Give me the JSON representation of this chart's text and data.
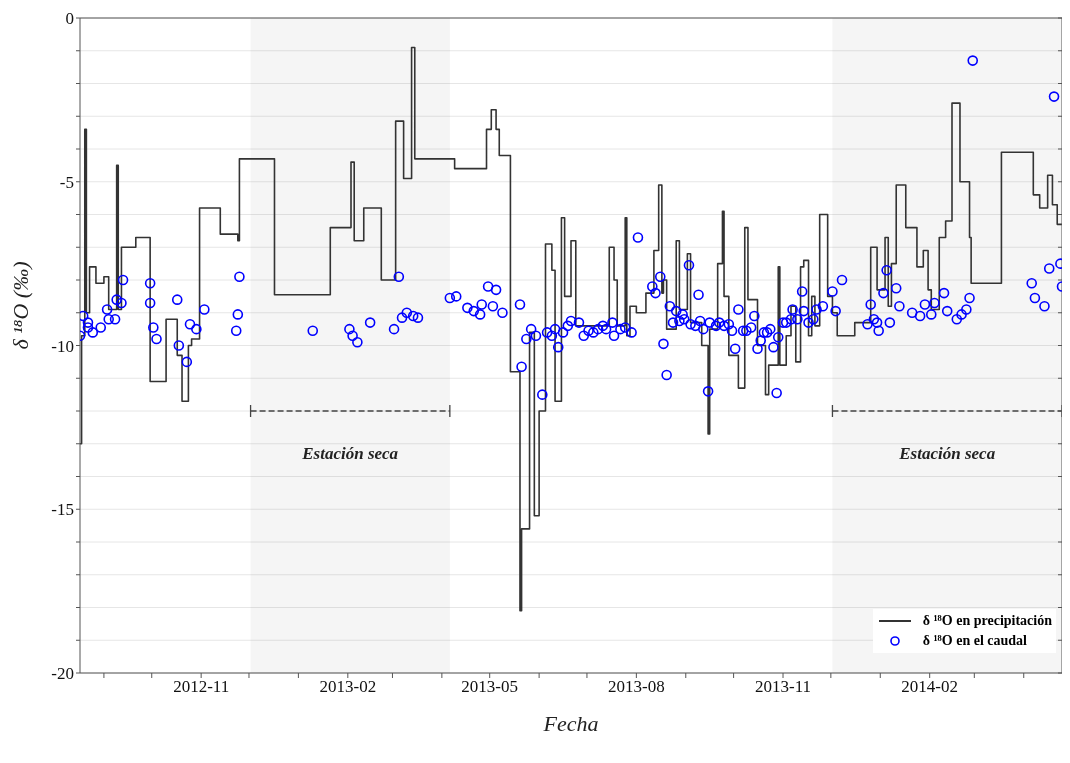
{
  "chart_data": {
    "type": "step",
    "xlabel": "Fecha",
    "ylabel": "δ ¹⁸O (‰)",
    "xlim": [
      "2012-08-17",
      "2014-04-25"
    ],
    "xticks": [
      {
        "value": "2012-09",
        "label": null
      },
      {
        "value": "2012-10",
        "label": null
      },
      "2012-11",
      {
        "value": "2012-12",
        "label": null
      },
      {
        "value": "2013-01",
        "label": null
      },
      "2013-02",
      {
        "value": "2013-03",
        "label": null
      },
      {
        "value": "2013-04",
        "label": null
      },
      "2013-05",
      {
        "value": "2013-06",
        "label": null
      },
      {
        "value": "2013-07",
        "label": null
      },
      "2013-08",
      {
        "value": "2013-09",
        "label": null
      },
      {
        "value": "2013-10",
        "label": null
      },
      "2013-11",
      {
        "value": "2013-12",
        "label": null
      },
      {
        "value": "2014-01",
        "label": null
      },
      "2014-02",
      {
        "value": "2014-03",
        "label": null
      },
      {
        "value": "2014-04",
        "label": null
      }
    ],
    "ylim": [
      -20,
      0
    ],
    "yticks": [
      -20,
      {
        "value": -19,
        "label": null
      },
      {
        "value": -18,
        "label": null
      },
      {
        "value": -17,
        "label": null
      },
      {
        "value": -16,
        "label": null
      },
      -15,
      {
        "value": -14,
        "label": null
      },
      {
        "value": -13,
        "label": null
      },
      {
        "value": -12,
        "label": null
      },
      {
        "value": -11,
        "label": null
      },
      -10,
      {
        "value": -9,
        "label": null
      },
      {
        "value": -8,
        "label": null
      },
      {
        "value": -7,
        "label": null
      },
      {
        "value": -6,
        "label": null
      },
      -5,
      {
        "value": -4,
        "label": null
      },
      {
        "value": -3,
        "label": null
      },
      {
        "value": -2,
        "label": null
      },
      {
        "value": -1,
        "label": null
      },
      0
    ],
    "grid": "y",
    "legend": "bottom right",
    "series": [
      {
        "name": "δ ¹⁸O en precipitación",
        "color": "#333333",
        "marker": "none",
        "x": [
          "2012-08-17",
          "2012-08-18",
          "2012-08-20",
          "2012-08-21",
          "2012-08-23",
          "2012-08-27",
          "2012-09-01",
          "2012-09-04",
          "2012-09-09",
          "2012-09-10",
          "2012-09-12",
          "2012-09-21",
          "2012-09-30",
          "2012-10-10",
          "2012-10-17",
          "2012-10-20",
          "2012-10-24",
          "2012-10-26",
          "2012-10-31",
          "2012-11-13",
          "2012-11-24",
          "2012-11-25",
          "2012-12-17",
          "2013-01-21",
          "2013-02-03",
          "2013-02-05",
          "2013-02-11",
          "2013-02-22",
          "2013-03-03",
          "2013-03-08",
          "2013-03-13",
          "2013-03-15",
          "2013-04-09",
          "2013-04-29",
          "2013-05-02",
          "2013-05-05",
          "2013-05-07",
          "2013-05-14",
          "2013-05-20",
          "2013-05-21",
          "2013-05-26",
          "2013-05-29",
          "2013-06-01",
          "2013-06-05",
          "2013-06-09",
          "2013-06-11",
          "2013-06-15",
          "2013-06-17",
          "2013-06-21",
          "2013-06-24",
          "2013-07-15",
          "2013-07-18",
          "2013-07-20",
          "2013-07-25",
          "2013-07-26",
          "2013-07-28",
          "2013-08-01",
          "2013-08-07",
          "2013-08-12",
          "2013-08-15",
          "2013-08-17",
          "2013-08-18",
          "2013-08-20",
          "2013-08-26",
          "2013-08-28",
          "2013-09-02",
          "2013-09-04",
          "2013-09-11",
          "2013-09-15",
          "2013-09-16",
          "2013-09-21",
          "2013-09-24",
          "2013-09-25",
          "2013-09-28",
          "2013-10-04",
          "2013-10-08",
          "2013-10-10",
          "2013-10-16",
          "2013-10-21",
          "2013-10-23",
          "2013-10-29",
          "2013-10-30",
          "2013-11-03",
          "2013-11-06",
          "2013-11-09",
          "2013-11-12",
          "2013-11-14",
          "2013-11-17",
          "2013-11-19",
          "2013-11-21",
          "2013-11-24",
          "2013-11-29",
          "2013-12-02",
          "2013-12-05",
          "2013-12-16",
          "2013-12-26",
          "2013-12-30",
          "2014-01-04",
          "2014-01-06",
          "2014-01-08",
          "2014-01-11",
          "2014-01-17",
          "2014-01-24",
          "2014-01-28",
          "2014-01-31",
          "2014-02-02",
          "2014-02-07",
          "2014-02-11",
          "2014-02-15",
          "2014-02-20",
          "2014-02-26",
          "2014-02-27",
          "2014-03-18",
          "2014-04-07",
          "2014-04-11",
          "2014-04-16",
          "2014-04-19",
          "2014-04-22",
          "2014-04-25"
        ],
        "values": [
          -13.0,
          -9.7,
          -3.4,
          -9.0,
          -7.6,
          -8.1,
          -7.9,
          -8.9,
          -4.5,
          -8.9,
          -7.0,
          -6.7,
          -11.1,
          -9.2,
          -10.3,
          -11.7,
          -10.0,
          -9.8,
          -5.8,
          -6.6,
          -6.8,
          -4.3,
          -8.45,
          -6.4,
          -4.4,
          -6.8,
          -5.8,
          -8.0,
          -3.15,
          -4.9,
          -0.9,
          -4.3,
          -4.6,
          -3.4,
          -2.8,
          -3.4,
          -4.2,
          -10.8,
          -18.1,
          -15.6,
          -9.6,
          -15.2,
          -12.0,
          -6.9,
          -7.7,
          -11.7,
          -6.1,
          -8.5,
          -6.8,
          -9.4,
          -7.0,
          -8.0,
          -9.4,
          -6.1,
          -9.7,
          -8.8,
          -9.0,
          -8.4,
          -7.1,
          -5.1,
          -8.4,
          -8.0,
          -9.5,
          -6.8,
          -8.9,
          -7.2,
          -9.3,
          -10.0,
          -12.7,
          -9.5,
          -7.5,
          -5.9,
          -8.5,
          -10.3,
          -11.3,
          -6.4,
          -8.6,
          -10.0,
          -11.5,
          -10.6,
          -7.6,
          -10.6,
          -9.7,
          -8.8,
          -10.5,
          -7.6,
          -7.4,
          -9.7,
          -8.5,
          -9.4,
          -6.0,
          -8.5,
          -9.0,
          -9.7,
          -9.3,
          -7.0,
          -8.3,
          -6.7,
          -8.8,
          -7.5,
          -5.1,
          -6.4,
          -7.6,
          -7.1,
          -8.3,
          -8.9,
          -6.7,
          -6.2,
          -2.6,
          -5.0,
          -6.7,
          -8.1,
          -4.1,
          -5.4,
          -5.8,
          -4.8,
          -5.7,
          -6.3,
          -6.3
        ]
      },
      {
        "name": "δ ¹⁸O en el caudal",
        "type": "scatter",
        "color": "#0000ff",
        "marker": "circle",
        "x": [
          "2012-08-17",
          "2012-08-19",
          "2012-08-22",
          "2012-08-22",
          "2012-08-25",
          "2012-08-30",
          "2012-09-03",
          "2012-09-04",
          "2012-09-08",
          "2012-09-09",
          "2012-09-12",
          "2012-09-13",
          "2012-09-30",
          "2012-09-30",
          "2012-10-02",
          "2012-10-04",
          "2012-10-17",
          "2012-10-18",
          "2012-10-23",
          "2012-10-25",
          "2012-10-29",
          "2012-11-03",
          "2012-11-23",
          "2012-11-24",
          "2012-11-25",
          "2013-01-10",
          "2013-02-02",
          "2013-02-04",
          "2013-02-07",
          "2013-02-15",
          "2013-03-02",
          "2013-03-05",
          "2013-03-07",
          "2013-03-10",
          "2013-03-14",
          "2013-03-17",
          "2013-04-06",
          "2013-04-10",
          "2013-04-17",
          "2013-04-21",
          "2013-04-25",
          "2013-04-26",
          "2013-04-30",
          "2013-05-03",
          "2013-05-05",
          "2013-05-09",
          "2013-05-20",
          "2013-05-21",
          "2013-05-24",
          "2013-05-27",
          "2013-05-30",
          "2013-06-03",
          "2013-06-06",
          "2013-06-09",
          "2013-06-11",
          "2013-06-13",
          "2013-06-16",
          "2013-06-19",
          "2013-06-21",
          "2013-06-26",
          "2013-06-29",
          "2013-07-02",
          "2013-07-05",
          "2013-07-08",
          "2013-07-11",
          "2013-07-13",
          "2013-07-17",
          "2013-07-18",
          "2013-07-22",
          "2013-07-25",
          "2013-07-29",
          "2013-08-02",
          "2013-08-11",
          "2013-08-13",
          "2013-08-16",
          "2013-08-18",
          "2013-08-20",
          "2013-08-22",
          "2013-08-24",
          "2013-08-26",
          "2013-08-28",
          "2013-08-30",
          "2013-08-31",
          "2013-09-03",
          "2013-09-04",
          "2013-09-07",
          "2013-09-09",
          "2013-09-10",
          "2013-09-12",
          "2013-09-15",
          "2013-09-16",
          "2013-09-20",
          "2013-09-22",
          "2013-09-25",
          "2013-09-28",
          "2013-09-30",
          "2013-10-02",
          "2013-10-04",
          "2013-10-07",
          "2013-10-09",
          "2013-10-12",
          "2013-10-14",
          "2013-10-16",
          "2013-10-18",
          "2013-10-20",
          "2013-10-22",
          "2013-10-24",
          "2013-10-26",
          "2013-10-28",
          "2013-10-29",
          "2013-11-01",
          "2013-11-03",
          "2013-11-06",
          "2013-11-07",
          "2013-11-10",
          "2013-11-13",
          "2013-11-14",
          "2013-11-17",
          "2013-11-20",
          "2013-11-22",
          "2013-11-26",
          "2013-12-02",
          "2013-12-04",
          "2013-12-08",
          "2013-12-24",
          "2013-12-26",
          "2013-12-28",
          "2013-12-30",
          "2013-12-31",
          "2014-01-03",
          "2014-01-05",
          "2014-01-07",
          "2014-01-11",
          "2014-01-13",
          "2014-01-21",
          "2014-01-26",
          "2014-01-29",
          "2014-02-02",
          "2014-02-04",
          "2014-02-10",
          "2014-02-12",
          "2014-02-18",
          "2014-02-21",
          "2014-02-24",
          "2014-02-26",
          "2014-02-28",
          "2014-04-06",
          "2014-04-08",
          "2014-04-14",
          "2014-04-17",
          "2014-04-20",
          "2014-04-24",
          "2014-04-25"
        ],
        "values": [
          -9.7,
          -9.1,
          -9.3,
          -9.45,
          -9.6,
          -9.45,
          -8.9,
          -9.2,
          -9.2,
          -8.6,
          -8.7,
          -8.0,
          -8.1,
          -8.7,
          -9.45,
          -9.8,
          -8.6,
          -10.0,
          -10.5,
          -9.35,
          -9.5,
          -8.9,
          -9.55,
          -9.05,
          -7.9,
          -9.55,
          -9.5,
          -9.7,
          -9.9,
          -9.3,
          -9.5,
          -7.9,
          -9.15,
          -9.0,
          -9.1,
          -9.15,
          -8.55,
          -8.5,
          -8.85,
          -8.95,
          -9.05,
          -8.75,
          -8.2,
          -8.8,
          -8.3,
          -9.0,
          -8.75,
          -10.65,
          -9.8,
          -9.5,
          -9.7,
          -11.5,
          -9.6,
          -9.7,
          -9.5,
          -10.05,
          -9.6,
          -9.4,
          -9.25,
          -9.3,
          -9.7,
          -9.55,
          -9.6,
          -9.5,
          -9.4,
          -9.5,
          -9.3,
          -9.7,
          -9.5,
          -9.45,
          -9.6,
          -6.7,
          -8.2,
          -8.4,
          -7.9,
          -9.95,
          -10.9,
          -8.8,
          -9.3,
          -8.95,
          -9.25,
          -9.05,
          -9.2,
          -7.55,
          -9.35,
          -9.4,
          -8.45,
          -9.25,
          -9.5,
          -11.4,
          -9.3,
          -9.4,
          -9.3,
          -9.4,
          -9.35,
          -9.55,
          -10.1,
          -8.9,
          -9.55,
          -9.55,
          -9.45,
          -9.1,
          -10.1,
          -9.85,
          -9.6,
          -9.6,
          -9.5,
          -10.05,
          -11.45,
          -9.75,
          -9.3,
          -9.3,
          -9.2,
          -8.9,
          -9.2,
          -8.35,
          -8.95,
          -9.3,
          -9.2,
          -8.9,
          -8.8,
          -8.35,
          -8.95,
          -8.0,
          -9.35,
          -8.75,
          -9.2,
          -9.3,
          -9.55,
          -8.4,
          -7.7,
          -9.3,
          -8.25,
          -8.8,
          -9.0,
          -9.1,
          -8.75,
          -9.05,
          -8.7,
          -8.4,
          -8.95,
          -9.2,
          -9.05,
          -8.9,
          -8.55,
          -1.3,
          -8.1,
          -8.55,
          -8.8,
          -7.65,
          -2.4,
          -7.5,
          -8.2
        ]
      }
    ],
    "bands": [
      {
        "axis": "x",
        "from": "2012-12-02",
        "to": "2013-04-06",
        "label": "Estación seca",
        "color": "#444444"
      },
      {
        "axis": "x",
        "from": "2013-12-02",
        "to": "2014-04-25",
        "label": "Estación seca",
        "color": "#444444"
      }
    ]
  }
}
